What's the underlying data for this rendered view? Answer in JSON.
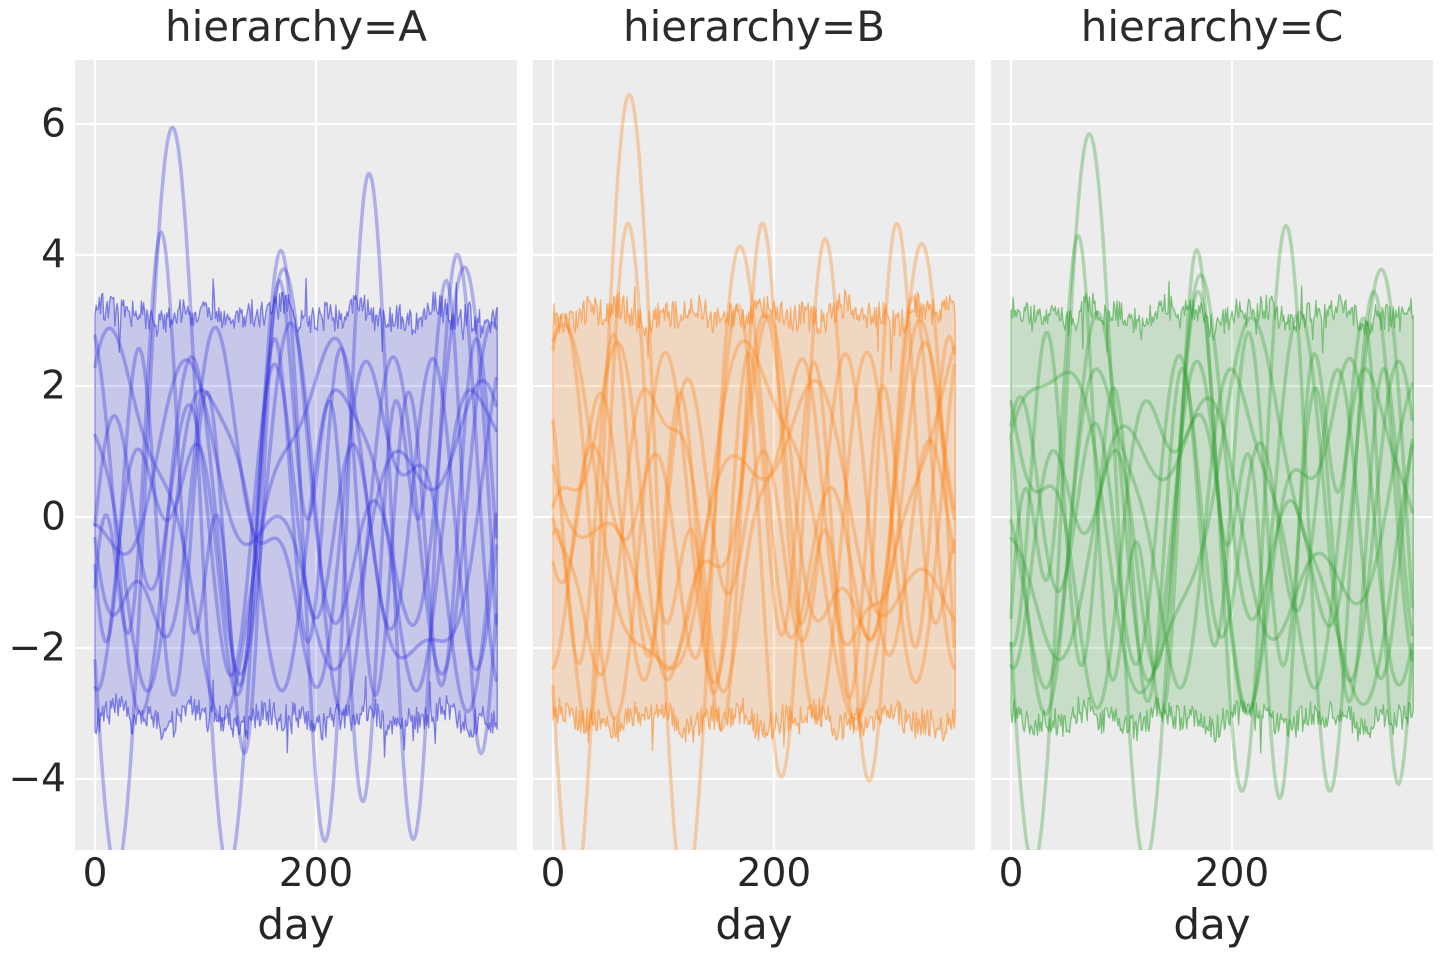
{
  "figure": {
    "background": "#ffffff",
    "panel_background": "#ececec",
    "grid_color": "#ffffff",
    "text_color": "#262626"
  },
  "chart_data": {
    "type": "line",
    "facet_variable": "hierarchy",
    "xlabel": "day",
    "x_ticks": [
      0,
      200
    ],
    "x_tick_labels": [
      "0",
      "200"
    ],
    "y_ticks": [
      6,
      4,
      2,
      0,
      -2,
      -4
    ],
    "y_tick_labels": [
      "6",
      "4",
      "2",
      "0",
      "−2",
      "−4"
    ],
    "x_domain": [
      0,
      364
    ],
    "y_view": [
      -5.08,
      6.98
    ],
    "grid": "on",
    "legend": "none",
    "series_model": "y(day) = a1*sin(2*pi*f1*day/365 + p1) + a2*sin(2*pi*f2*day/365 + p2); series entries are [a1,f1,p1,a2,f2,p2]",
    "band_model": "noisy envelope filled between +(halfwidth+wobble+daily noise) and -(halfwidth+wobble+daily noise), occasional larger spikes",
    "style": {
      "line_width": 3.5,
      "line_opacity": 0.32,
      "band_opacity": 0.19,
      "band_edge_opacity": 0.55,
      "band_edge_width": 1.3,
      "grid_width": 2.2
    },
    "facets": [
      {
        "label": "hierarchy=A",
        "color": "#2b2bdf",
        "band": {
          "halfwidth": 3.08,
          "noise": 0.22,
          "seed": 7
        },
        "series": [
          [
            3.1,
            4,
            -3.25,
            2.85,
            3,
            -2.05
          ],
          [
            2.3,
            3,
            -1.52,
            2.05,
            7,
            0.64
          ],
          [
            2.65,
            5,
            -0.92,
            2.6,
            4,
            -2.95
          ],
          [
            2.5,
            2,
            0.8,
            0.6,
            5,
            1.0
          ],
          [
            2.2,
            3,
            2.4,
            0.5,
            6,
            -0.5
          ],
          [
            2.7,
            4,
            1.9,
            0.4,
            2,
            2.6
          ],
          [
            1.8,
            5,
            0.3,
            0.7,
            3,
            -1.2
          ],
          [
            2.4,
            6,
            -2.6,
            0.5,
            2,
            1.4
          ],
          [
            1.5,
            1.5,
            -0.6,
            0.9,
            4,
            2.2
          ],
          [
            2.0,
            2.5,
            2.9,
            1.0,
            5.5,
            -2.2
          ]
        ]
      },
      {
        "label": "hierarchy=B",
        "color": "#ff7f0e",
        "band": {
          "halfwidth": 3.1,
          "noise": 0.22,
          "seed": 13
        },
        "series": [
          [
            3.45,
            4,
            -3.18,
            3.0,
            3,
            -2.0
          ],
          [
            2.5,
            3,
            -2.2,
            2.1,
            6,
            1.0
          ],
          [
            2.3,
            5,
            -0.8,
            1.95,
            4,
            -2.8
          ],
          [
            2.6,
            2,
            1.5,
            0.5,
            5,
            0.2
          ],
          [
            2.1,
            3,
            2.9,
            0.6,
            7,
            -1.1
          ],
          [
            2.8,
            4,
            0.9,
            0.4,
            2,
            2.0
          ],
          [
            1.7,
            5,
            -2.4,
            0.8,
            3,
            0.6
          ],
          [
            2.3,
            6,
            2.2,
            0.5,
            2.5,
            -0.9
          ],
          [
            1.6,
            1.5,
            2.3,
            0.8,
            4,
            -2.6
          ],
          [
            2.1,
            2.5,
            -0.4,
            1.0,
            5.5,
            1.8
          ]
        ]
      },
      {
        "label": "hierarchy=C",
        "color": "#2ca02c",
        "band": {
          "halfwidth": 3.08,
          "noise": 0.22,
          "seed": 29
        },
        "series": [
          [
            3.05,
            4,
            -3.3,
            2.8,
            3,
            -2.1
          ],
          [
            2.4,
            3,
            -1.3,
            2.0,
            7,
            0.4
          ],
          [
            2.35,
            5,
            -1.0,
            2.1,
            4,
            -3.0
          ],
          [
            2.55,
            2,
            0.3,
            0.5,
            5,
            1.8
          ],
          [
            2.2,
            3,
            -2.9,
            0.6,
            6,
            0.9
          ],
          [
            2.75,
            4,
            2.5,
            0.45,
            2,
            -1.7
          ],
          [
            1.8,
            5,
            1.1,
            0.7,
            3,
            -0.3
          ],
          [
            2.35,
            6,
            -1.8,
            0.5,
            2,
            0.8
          ],
          [
            1.5,
            1.5,
            -2.2,
            0.9,
            4,
            1.4
          ],
          [
            2.0,
            2.5,
            1.6,
            1.0,
            5.5,
            -2.9
          ]
        ]
      }
    ]
  }
}
